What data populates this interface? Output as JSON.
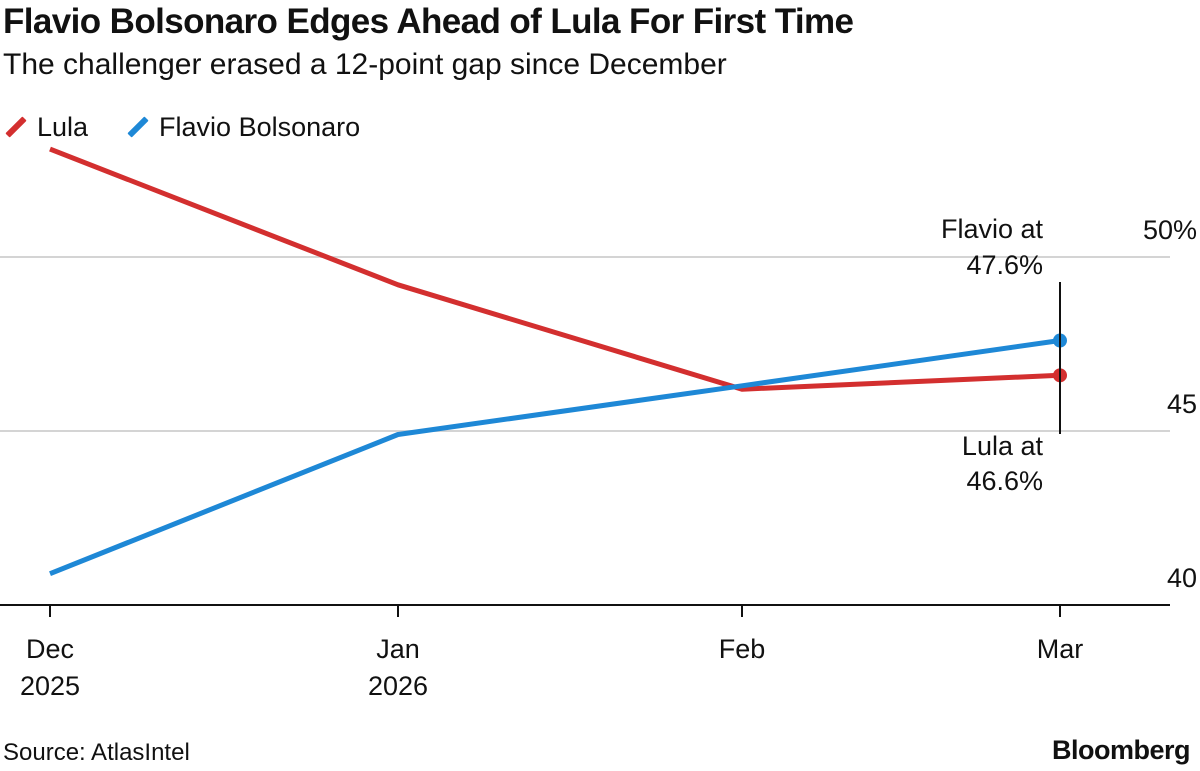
{
  "header": {
    "title": "Flavio Bolsonaro Edges Ahead of Lula For First Time",
    "subtitle": "The challenger erased a 12-point gap since December"
  },
  "legend": {
    "items": [
      {
        "label": "Lula",
        "color": "#d32f2f"
      },
      {
        "label": "Flavio Bolsonaro",
        "color": "#1e88d6"
      }
    ]
  },
  "footer": {
    "source": "Source: AtlasIntel",
    "brand": "Bloomberg"
  },
  "chart_data": {
    "type": "line",
    "title": "Flavio Bolsonaro Edges Ahead of Lula For First Time",
    "subtitle": "The challenger erased a 12-point gap since December",
    "xlabel": "",
    "ylabel": "",
    "categories": [
      {
        "line1": "Dec",
        "line2": "2025"
      },
      {
        "line1": "Jan",
        "line2": "2026"
      },
      {
        "line1": "Feb",
        "line2": ""
      },
      {
        "line1": "Mar",
        "line2": ""
      }
    ],
    "ylim": [
      40,
      53
    ],
    "yticks": [
      {
        "value": 50,
        "label": "50%"
      },
      {
        "value": 45,
        "label": "45"
      },
      {
        "value": 40,
        "label": "40"
      }
    ],
    "grid": true,
    "series": [
      {
        "name": "Lula",
        "color": "#d32f2f",
        "values": [
          53.1,
          49.2,
          46.2,
          46.6
        ]
      },
      {
        "name": "Flavio Bolsonaro",
        "color": "#1e88d6",
        "values": [
          40.9,
          44.9,
          46.3,
          47.6
        ]
      }
    ],
    "annotations": [
      {
        "series": "Flavio Bolsonaro",
        "line1": "Flavio at",
        "line2": "47.6%"
      },
      {
        "series": "Lula",
        "line1": "Lula at",
        "line2": "46.6%"
      }
    ]
  }
}
